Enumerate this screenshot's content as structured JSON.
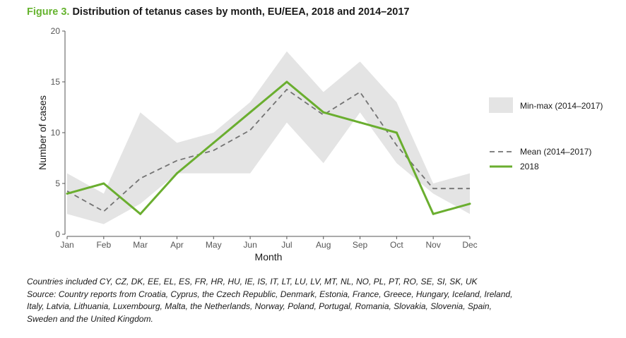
{
  "figure": {
    "label": "Figure 3.",
    "title": "Distribution of tetanus cases by month, EU/EEA, 2018 and 2014–2017"
  },
  "chart_data": {
    "type": "line",
    "categories": [
      "Jan",
      "Feb",
      "Mar",
      "Apr",
      "May",
      "Jun",
      "Jul",
      "Aug",
      "Sep",
      "Oct",
      "Nov",
      "Dec"
    ],
    "series": [
      {
        "name": "Min-max (2014–2017)",
        "kind": "band",
        "min": [
          2,
          1,
          3,
          6,
          6,
          6,
          11,
          7,
          12,
          7,
          4,
          2
        ],
        "max": [
          6,
          4,
          12,
          9,
          10,
          13,
          18,
          14,
          17,
          13,
          5,
          6
        ]
      },
      {
        "name": "Mean (2014–2017)",
        "kind": "dashed-line",
        "values": [
          4.25,
          2.25,
          5.5,
          7.25,
          8.25,
          10.25,
          14.25,
          11.75,
          14,
          8.75,
          4.5,
          4.5
        ]
      },
      {
        "name": "2018",
        "kind": "line",
        "values": [
          4,
          5,
          2,
          6,
          9,
          12,
          15,
          12,
          11,
          10,
          2,
          3
        ]
      }
    ],
    "yticks": [
      "0",
      "5",
      "10",
      "15",
      "20"
    ],
    "ylim": [
      0,
      20
    ],
    "xlabel": "Month",
    "ylabel": "Number of cases",
    "legend_position": "right",
    "colors": {
      "band": "#e4e4e4",
      "mean": "#737373",
      "line2018": "#6aae2f"
    }
  },
  "notes": {
    "countries": "Countries included CY, CZ, DK, EE, EL, ES, FR, HR, HU, IE, IS, IT, LT, LU, LV, MT, NL, NO, PL, PT, RO, SE, SI, SK, UK",
    "source_line1": "Source: Country reports from Croatia, Cyprus, the Czech Republic, Denmark, Estonia, France, Greece, Hungary, Iceland, Ireland,",
    "source_line2": "Italy, Latvia, Lithuania, Luxembourg, Malta, the Netherlands, Norway, Poland, Portugal, Romania, Slovakia, Slovenia, Spain,",
    "source_line3": "Sweden and the United Kingdom."
  }
}
